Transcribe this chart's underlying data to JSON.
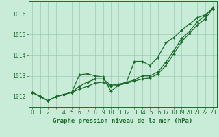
{
  "background_color": "#c8ecd8",
  "grid_color": "#a0c8b8",
  "line_color": "#1a6b2a",
  "text_color": "#1a6b2a",
  "xlabel": "Graphe pression niveau de la mer (hPa)",
  "ylim": [
    1011.5,
    1016.6
  ],
  "xlim": [
    -0.5,
    23.5
  ],
  "yticks": [
    1012,
    1013,
    1014,
    1015,
    1016
  ],
  "xticks": [
    0,
    1,
    2,
    3,
    4,
    5,
    6,
    7,
    8,
    9,
    10,
    11,
    12,
    13,
    14,
    15,
    16,
    17,
    18,
    19,
    20,
    21,
    22,
    23
  ],
  "series_jagged": [
    1012.2,
    1012.0,
    1011.8,
    1012.0,
    1012.1,
    1012.2,
    1013.05,
    1013.1,
    1013.0,
    1012.95,
    1012.25,
    1012.55,
    1012.7,
    1013.7,
    1013.7,
    1013.5,
    1013.9,
    1014.6,
    1014.85,
    1015.2,
    1015.5,
    1015.8,
    1015.95,
    1016.25
  ],
  "series_smooth1": [
    1012.2,
    1012.0,
    1011.8,
    1012.0,
    1012.1,
    1012.2,
    1012.35,
    1012.5,
    1012.65,
    1012.7,
    1012.5,
    1012.55,
    1012.65,
    1012.75,
    1012.85,
    1012.9,
    1013.1,
    1013.5,
    1014.05,
    1014.65,
    1015.05,
    1015.45,
    1015.75,
    1016.25
  ],
  "series_smooth2": [
    1012.2,
    1012.0,
    1011.8,
    1012.0,
    1012.1,
    1012.2,
    1012.5,
    1012.7,
    1012.85,
    1012.85,
    1012.55,
    1012.6,
    1012.7,
    1012.8,
    1013.0,
    1013.0,
    1013.2,
    1013.65,
    1014.2,
    1014.8,
    1015.15,
    1015.6,
    1015.9,
    1016.3
  ],
  "marker_size": 2.0,
  "linewidth": 0.9,
  "font_size": 6.5,
  "tick_font_size": 5.8
}
